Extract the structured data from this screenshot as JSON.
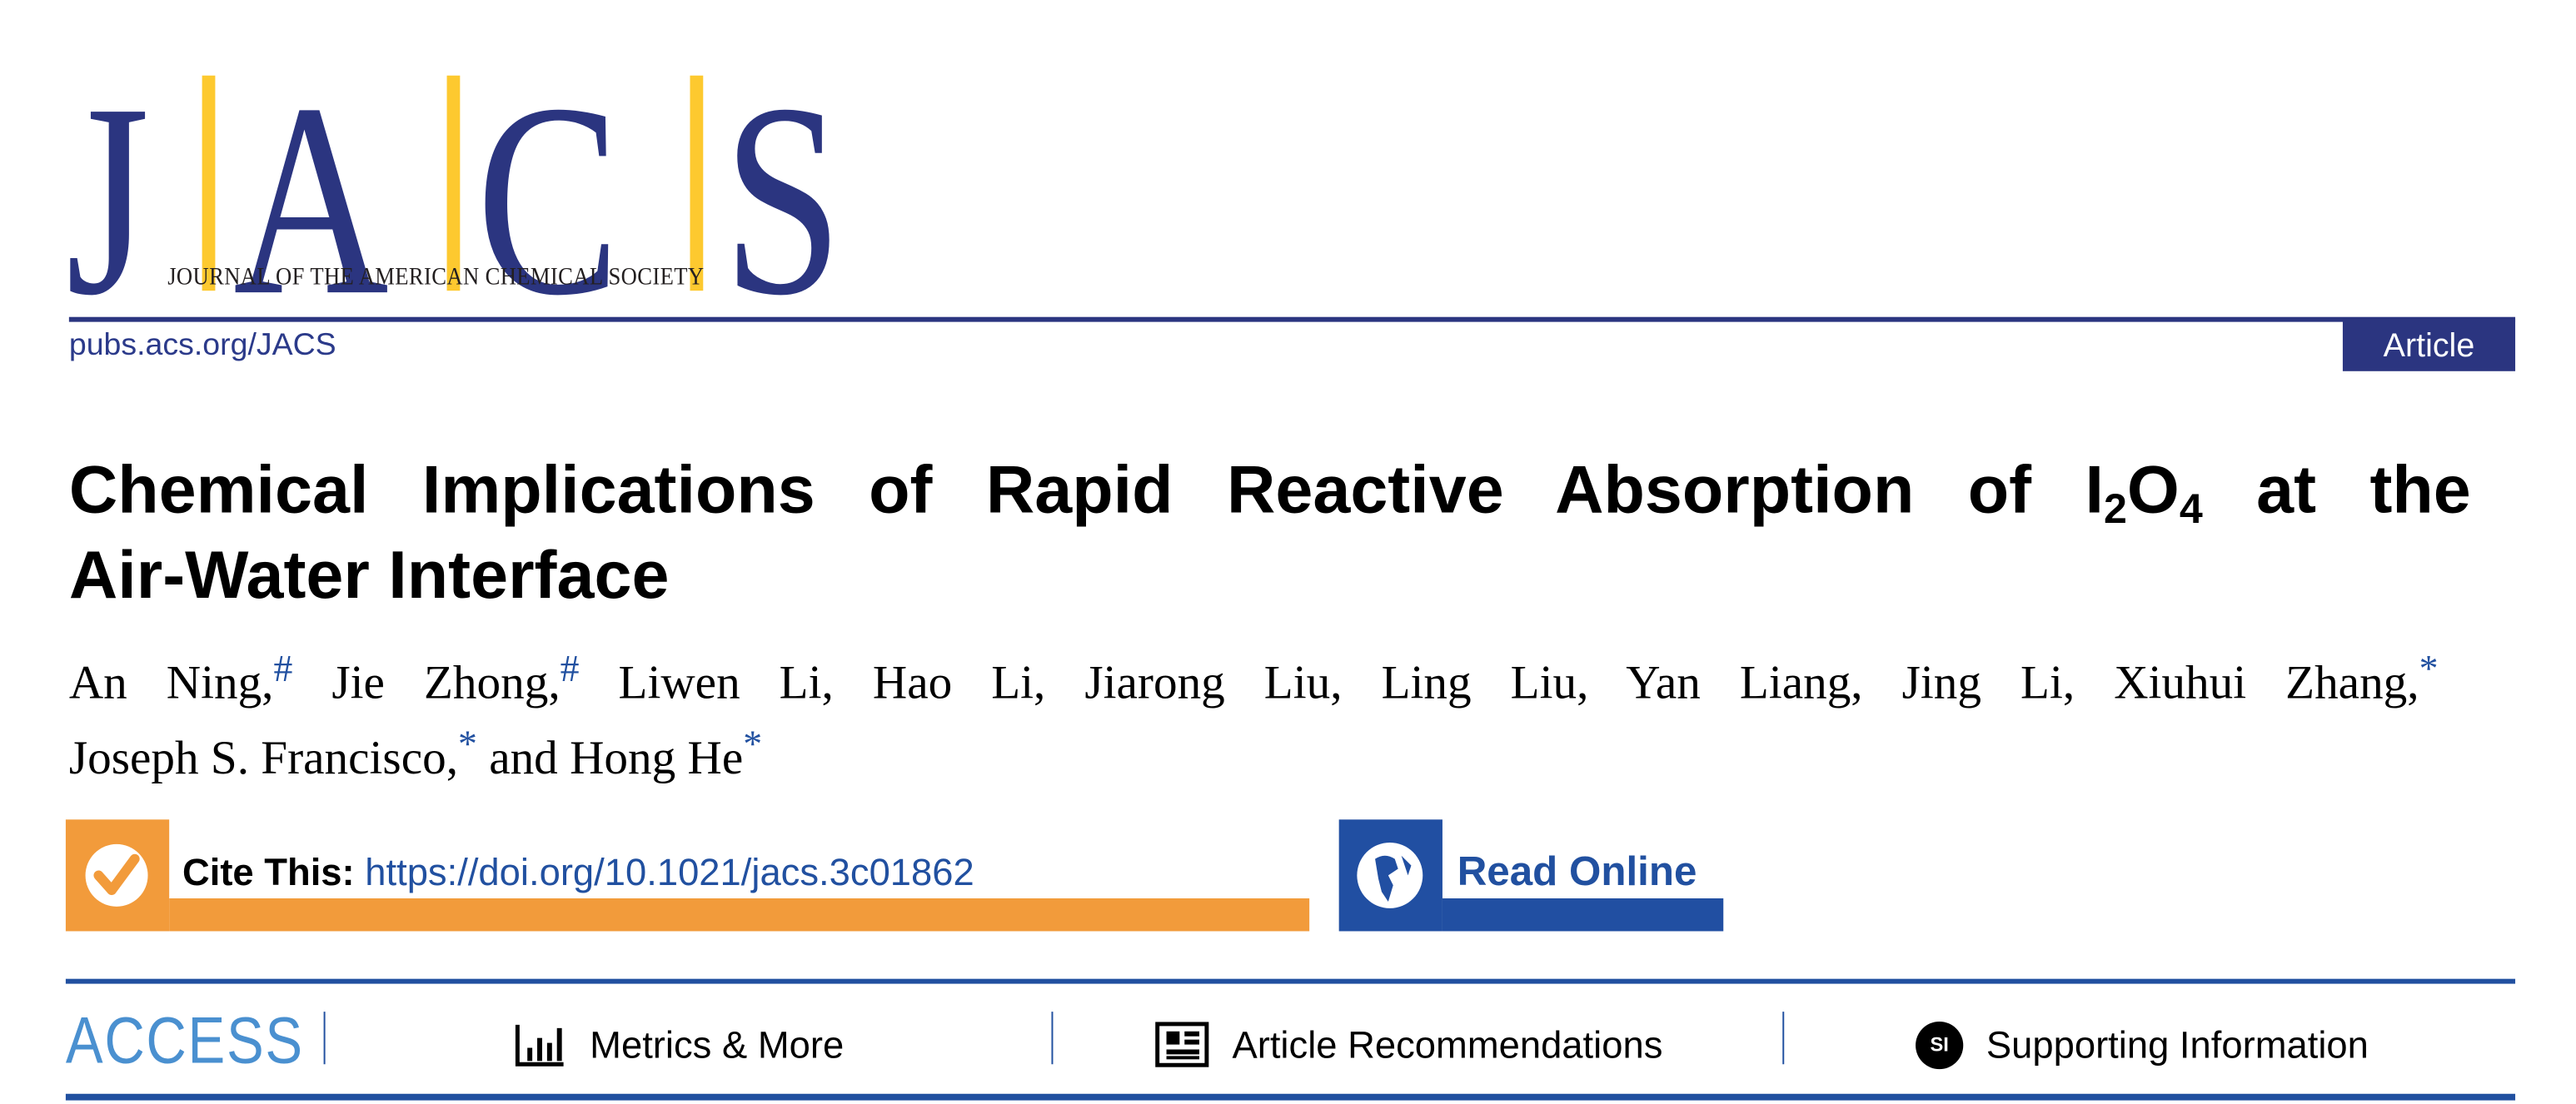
{
  "header": {
    "logo_text": "JACS",
    "journal_name": "JOURNAL OF THE AMERICAN CHEMICAL SOCIETY",
    "site_link": "pubs.acs.org/JACS",
    "article_type": "Article"
  },
  "colors": {
    "navy": "#2b3580",
    "yellow": "#fdc92f",
    "orange": "#f29b3b",
    "blue": "#2150a0",
    "access_blue": "#4a90d0"
  },
  "article": {
    "title_line1_pre": "Chemical Implications of Rapid Reactive Absorption of I",
    "title_sub1": "2",
    "title_mid": "O",
    "title_sub2": "4",
    "title_line1_post": " at the",
    "title_line2": "Air-Water Interface",
    "authors": [
      {
        "name": "An Ning,",
        "mark": "#"
      },
      {
        "name": "Jie Zhong,",
        "mark": "#"
      },
      {
        "name": "Liwen Li,",
        "mark": ""
      },
      {
        "name": "Hao Li,",
        "mark": ""
      },
      {
        "name": "Jiarong Liu,",
        "mark": ""
      },
      {
        "name": "Ling Liu,",
        "mark": ""
      },
      {
        "name": "Yan Liang,",
        "mark": ""
      },
      {
        "name": "Jing Li,",
        "mark": ""
      },
      {
        "name": "Xiuhui Zhang,",
        "mark": "*"
      },
      {
        "name": "Joseph S. Francisco,",
        "mark": "*"
      },
      {
        "name": "and Hong He",
        "mark": "*"
      }
    ]
  },
  "cite": {
    "label": "Cite This:",
    "doi": "https://doi.org/10.1021/jacs.3c01862",
    "icon": "check-circle-icon"
  },
  "read_online": {
    "label": "Read Online",
    "icon": "globe-icon"
  },
  "access_bar": {
    "label": "ACCESS",
    "items": [
      {
        "label": "Metrics & More",
        "icon": "bar-chart-icon"
      },
      {
        "label": "Article Recommendations",
        "icon": "newspaper-icon"
      },
      {
        "label": "Supporting Information",
        "icon": "si-icon",
        "icon_text": "SI"
      }
    ]
  }
}
